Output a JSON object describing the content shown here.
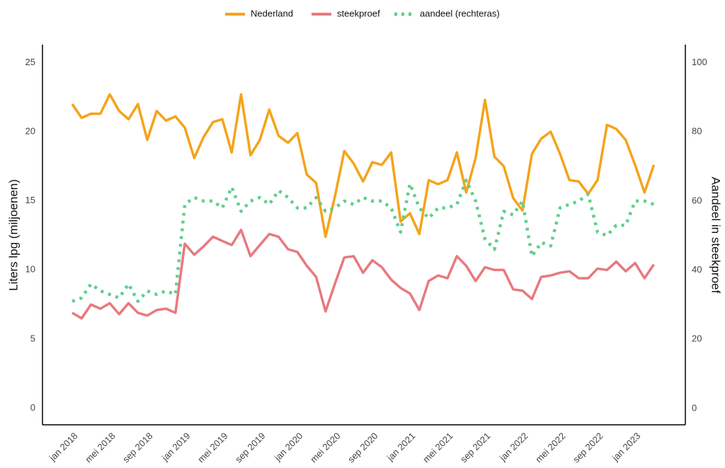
{
  "chart_data": {
    "type": "line",
    "categories": [
      "jan 2018",
      null,
      null,
      null,
      "mei 2018",
      null,
      null,
      null,
      "sep 2018",
      null,
      null,
      null,
      "jan 2019",
      null,
      null,
      null,
      "mei 2019",
      null,
      null,
      null,
      "sep 2019",
      null,
      null,
      null,
      "jan 2020",
      null,
      null,
      null,
      "mei 2020",
      null,
      null,
      null,
      "sep 2020",
      null,
      null,
      null,
      "jan 2021",
      null,
      null,
      null,
      "mei 2021",
      null,
      null,
      null,
      "sep 2021",
      null,
      null,
      null,
      "jan 2022",
      null,
      null,
      null,
      "mei 2022",
      null,
      null,
      null,
      "sep 2022",
      null,
      null,
      null,
      "jan 2023",
      null,
      null
    ],
    "series": [
      {
        "name": "Nederland",
        "color": "#f5a31a",
        "style": "solid",
        "values": [
          22.0,
          21.0,
          21.3,
          21.3,
          22.7,
          21.5,
          20.9,
          22.0,
          19.4,
          21.5,
          20.8,
          21.1,
          20.3,
          18.1,
          19.6,
          20.7,
          20.9,
          18.5,
          22.7,
          18.3,
          19.4,
          21.6,
          19.7,
          19.2,
          19.9,
          16.9,
          16.3,
          12.4,
          15.3,
          18.6,
          17.7,
          16.4,
          17.8,
          17.6,
          18.5,
          13.5,
          14.1,
          12.6,
          16.5,
          16.2,
          16.5,
          18.5,
          15.6,
          18.1,
          22.3,
          18.2,
          17.5,
          15.2,
          14.3,
          18.4,
          19.5,
          20.0,
          18.4,
          16.5,
          16.4,
          15.5,
          16.5,
          20.5,
          20.2,
          19.4,
          17.6,
          15.6,
          17.6
        ]
      },
      {
        "name": "steekproef",
        "color": "#e8797f",
        "style": "solid",
        "values": [
          6.9,
          6.5,
          7.5,
          7.2,
          7.6,
          6.8,
          7.6,
          6.9,
          6.7,
          7.1,
          7.2,
          6.9,
          11.9,
          11.1,
          11.7,
          12.4,
          12.1,
          11.8,
          12.9,
          11.0,
          11.8,
          12.6,
          12.4,
          11.5,
          11.3,
          10.3,
          9.5,
          7.0,
          9.0,
          10.9,
          11.0,
          9.8,
          10.7,
          10.2,
          9.3,
          8.7,
          8.3,
          7.1,
          9.2,
          9.6,
          9.4,
          11.0,
          10.3,
          9.2,
          10.2,
          10.0,
          10.0,
          8.6,
          8.5,
          7.9,
          9.5,
          9.6,
          9.8,
          9.9,
          9.4,
          9.4,
          10.1,
          10.0,
          10.6,
          9.9,
          10.5,
          9.4,
          10.4
        ]
      },
      {
        "name": "aandeel (rechteras)",
        "color": "#5fcf8c",
        "style": "dotted",
        "axis": "y2",
        "values": [
          31,
          32,
          36,
          34,
          33,
          32,
          36,
          31,
          34,
          33,
          34,
          33,
          59,
          61,
          60,
          60,
          58,
          64,
          57,
          60,
          61,
          59,
          63,
          61,
          58,
          58,
          61,
          57,
          58,
          60,
          59,
          61,
          60,
          60,
          58,
          51,
          65,
          58,
          55,
          58,
          58,
          59,
          66,
          60,
          49,
          46,
          57,
          56,
          60,
          44,
          48,
          47,
          58,
          59,
          60,
          62,
          51,
          50,
          53,
          53,
          60,
          60,
          59
        ]
      }
    ],
    "ylabel": "Liters lpg (miljoenen)",
    "y2label": "Aandeel in steekproef",
    "ylim": [
      -1.2,
      26.3
    ],
    "yticks": [
      0,
      5,
      10,
      15,
      20,
      25
    ],
    "y2lim": [
      -4.7,
      105.2
    ],
    "y2ticks": [
      0,
      20,
      40,
      60,
      80,
      100
    ],
    "legend": "top",
    "grid": false
  }
}
